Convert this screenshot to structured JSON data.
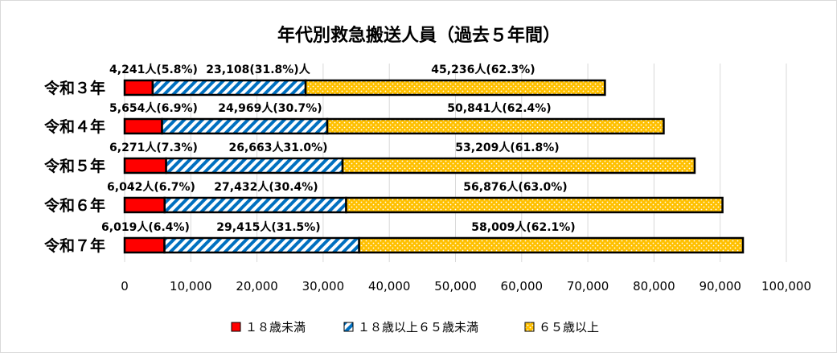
{
  "chart_data": {
    "type": "bar",
    "orientation": "horizontal",
    "stacked": true,
    "title": "年代別救急搬送人員（過去５年間）",
    "categories": [
      "令和３年",
      "令和４年",
      "令和５年",
      "令和６年",
      "令和７年"
    ],
    "series": [
      {
        "name": "１８歳未満",
        "values": [
          4241,
          5654,
          6271,
          6042,
          6019
        ],
        "color": "#ff0000",
        "pattern": "solid",
        "labels": [
          "4,241人(5.8%)",
          "5,654人(6.9%)",
          "6,271人(7.3%)",
          "6,042人(6.7%)",
          "6,019人(6.4%)"
        ]
      },
      {
        "name": "１８歳以上６５歳未満",
        "values": [
          23108,
          24969,
          26663,
          27432,
          29415
        ],
        "color": "#0070c0",
        "pattern": "diagonal-stripes",
        "labels": [
          "23,108(31.8%)人",
          "24,969人(30.7%)",
          "26,663人31.0%)",
          "27,432人(30.4%)",
          "29,415人(31.5%)"
        ]
      },
      {
        "name": "６５歳以上",
        "values": [
          45236,
          50841,
          53209,
          56876,
          58009
        ],
        "color": "#ffc000",
        "pattern": "dots",
        "labels": [
          "45,236人(62.3%)",
          "50,841人(62.4%)",
          "53,209人(61.8%)",
          "56,876人(63.0%)",
          "58,009人(62.1%)"
        ]
      }
    ],
    "xlim": [
      0,
      100000
    ],
    "xticks": [
      "0",
      "10,000",
      "20,000",
      "30,000",
      "40,000",
      "50,000",
      "60,000",
      "70,000",
      "80,000",
      "90,000",
      "100,000"
    ],
    "grid": true,
    "legend": "bottom"
  }
}
